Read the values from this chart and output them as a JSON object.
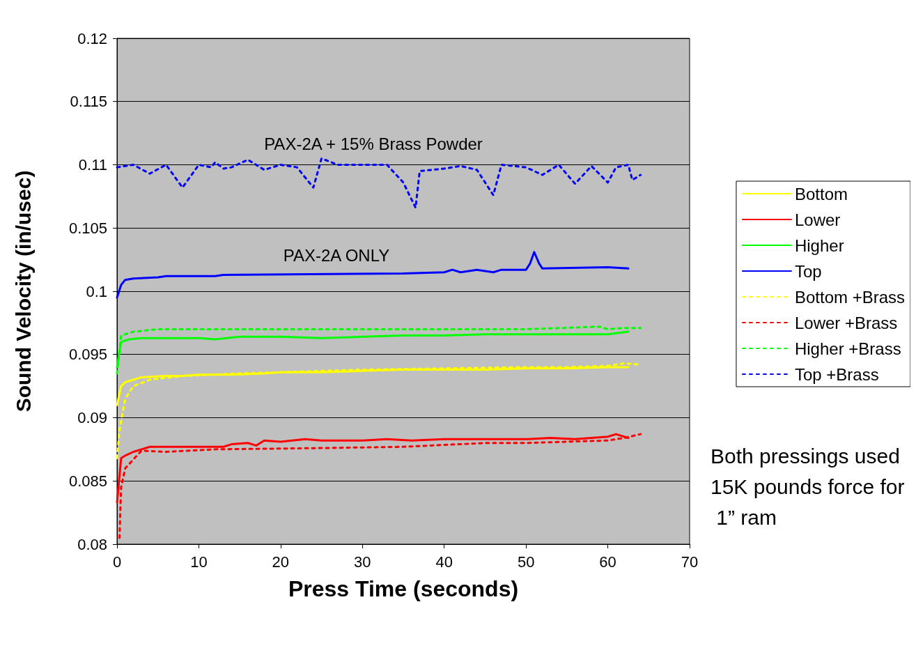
{
  "chart_data": {
    "type": "line",
    "xlabel": "Press Time (seconds)",
    "ylabel": "Sound Velocity (in/usec)",
    "xlim": [
      0,
      70
    ],
    "xticks": [
      0,
      10,
      20,
      30,
      40,
      50,
      60,
      70
    ],
    "ylim": [
      0.08,
      0.12
    ],
    "yticks": [
      0.08,
      0.085,
      0.09,
      0.095,
      0.1,
      0.105,
      0.11,
      0.115,
      0.12
    ],
    "grid": "y",
    "legend": "right",
    "marker": "none",
    "annotations": [
      "PAX-2A + 15% Brass Powder",
      "PAX-2A ONLY",
      "Both pressings used 15K pounds force for 1” ram"
    ],
    "series": [
      {
        "name": "Bottom",
        "color": "#ffff00",
        "line_style": "solid",
        "x": [
          0,
          0.5,
          1,
          2,
          3,
          6,
          8,
          10,
          14,
          18,
          20,
          25,
          30,
          35,
          40,
          45,
          50,
          55,
          60,
          62.5
        ],
        "values": [
          0.091,
          0.0925,
          0.0928,
          0.093,
          0.0932,
          0.0933,
          0.0933,
          0.0934,
          0.0934,
          0.0935,
          0.0936,
          0.0936,
          0.0937,
          0.0938,
          0.0938,
          0.0938,
          0.0939,
          0.0939,
          0.094,
          0.094
        ]
      },
      {
        "name": "Lower",
        "color": "#ff0000",
        "line_style": "solid",
        "x": [
          0,
          0.5,
          1,
          2,
          3,
          4,
          6,
          10,
          13,
          14,
          16,
          17,
          18,
          20,
          23,
          25,
          30,
          33,
          36,
          40,
          45,
          50,
          53,
          56,
          60,
          61,
          62,
          62.5
        ],
        "values": [
          0.0833,
          0.0868,
          0.087,
          0.0873,
          0.0875,
          0.0877,
          0.0877,
          0.0877,
          0.0877,
          0.0879,
          0.088,
          0.0878,
          0.0882,
          0.0881,
          0.0883,
          0.0882,
          0.0882,
          0.0883,
          0.0882,
          0.0883,
          0.0883,
          0.0883,
          0.0884,
          0.0883,
          0.0885,
          0.0887,
          0.0885,
          0.0884
        ]
      },
      {
        "name": "Higher",
        "color": "#00ff00",
        "line_style": "solid",
        "x": [
          0,
          0.5,
          1.5,
          3,
          5,
          8,
          10,
          12,
          15,
          20,
          25,
          30,
          35,
          40,
          45,
          50,
          55,
          58,
          60,
          62.5
        ],
        "values": [
          0.094,
          0.096,
          0.0962,
          0.0963,
          0.0963,
          0.0963,
          0.0963,
          0.0962,
          0.0964,
          0.0964,
          0.0963,
          0.0964,
          0.0965,
          0.0965,
          0.0966,
          0.0966,
          0.0966,
          0.0966,
          0.0966,
          0.0968
        ]
      },
      {
        "name": "Top",
        "color": "#0000ff",
        "line_style": "solid",
        "x": [
          0,
          0.5,
          1,
          2,
          5,
          6,
          12,
          13,
          35,
          40,
          41,
          42,
          44,
          46,
          47,
          50,
          50.5,
          51,
          51.6,
          52,
          60,
          62.5
        ],
        "values": [
          0.0995,
          0.1005,
          0.1009,
          0.101,
          0.1011,
          0.1012,
          0.1012,
          0.1013,
          0.1014,
          0.1015,
          0.1017,
          0.1015,
          0.1017,
          0.1015,
          0.1017,
          0.1017,
          0.1022,
          0.1031,
          0.1022,
          0.1018,
          0.1019,
          0.1018
        ]
      },
      {
        "name": "Bottom +Brass",
        "color": "#ffff00",
        "line_style": "dashed",
        "x": [
          0,
          0.3,
          1,
          2,
          4,
          8,
          15,
          20,
          30,
          40,
          50,
          55,
          60,
          62,
          64
        ],
        "values": [
          0.0868,
          0.089,
          0.0915,
          0.0925,
          0.093,
          0.0933,
          0.0935,
          0.0936,
          0.0938,
          0.0939,
          0.094,
          0.094,
          0.0941,
          0.0943,
          0.0942
        ]
      },
      {
        "name": "Lower +Brass",
        "color": "#ff0000",
        "line_style": "dashed",
        "x": [
          0.3,
          0.5,
          1,
          3,
          6,
          12,
          25,
          35,
          45,
          50,
          55,
          60,
          62,
          64
        ],
        "values": [
          0.0805,
          0.0845,
          0.086,
          0.0874,
          0.0873,
          0.0875,
          0.0876,
          0.0877,
          0.088,
          0.088,
          0.0881,
          0.0882,
          0.0884,
          0.0887
        ]
      },
      {
        "name": "Higher +Brass",
        "color": "#00ff00",
        "line_style": "dashed",
        "x": [
          0,
          0.5,
          2,
          5,
          10,
          20,
          30,
          40,
          50,
          59,
          60,
          62,
          64
        ],
        "values": [
          0.0935,
          0.0965,
          0.0968,
          0.097,
          0.097,
          0.097,
          0.097,
          0.097,
          0.097,
          0.0972,
          0.097,
          0.0971,
          0.0971
        ]
      },
      {
        "name": "Top +Brass",
        "color": "#0000ff",
        "line_style": "dashed",
        "x": [
          0,
          2,
          4,
          6,
          8,
          10,
          11.5,
          12,
          13,
          14,
          16,
          18,
          20,
          22,
          24,
          25,
          27,
          30,
          33,
          35,
          36.5,
          37,
          40,
          42,
          44,
          46,
          47,
          50,
          52,
          54,
          56,
          58,
          60,
          61,
          62.5,
          63,
          64
        ],
        "values": [
          0.1098,
          0.11,
          0.1093,
          0.11,
          0.1082,
          0.11,
          0.1098,
          0.1102,
          0.1097,
          0.1098,
          0.1104,
          0.1096,
          0.11,
          0.1098,
          0.1082,
          0.1105,
          0.11,
          0.11,
          0.11,
          0.1086,
          0.1066,
          0.1095,
          0.1097,
          0.1099,
          0.1096,
          0.1076,
          0.11,
          0.1098,
          0.1092,
          0.11,
          0.1085,
          0.1099,
          0.1086,
          0.1098,
          0.11,
          0.1088,
          0.1092
        ]
      }
    ]
  }
}
